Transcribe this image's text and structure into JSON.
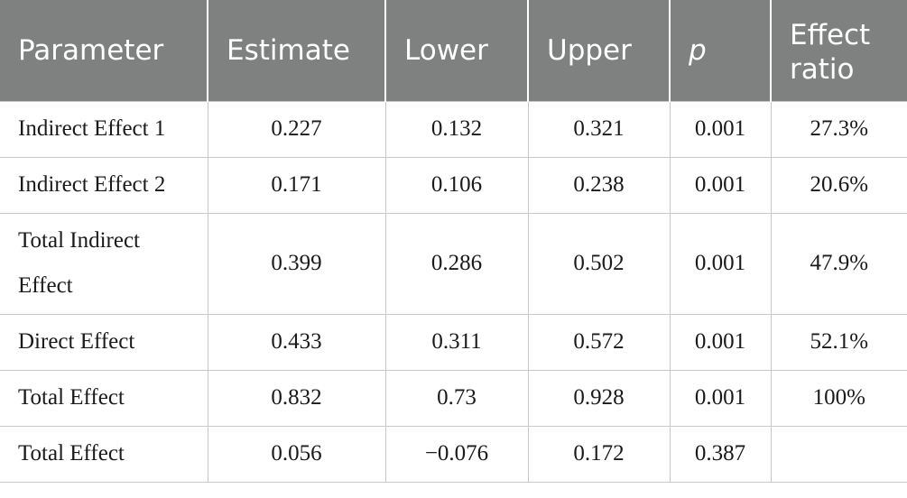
{
  "table": {
    "headers": [
      "Parameter",
      "Estimate",
      "Lower",
      "Upper",
      "p",
      "Effect ratio"
    ],
    "rows": [
      [
        "Indirect Effect 1",
        "0.227",
        "0.132",
        "0.321",
        "0.001",
        "27.3%"
      ],
      [
        "Indirect Effect 2",
        "0.171",
        "0.106",
        "0.238",
        "0.001",
        "20.6%"
      ],
      [
        "Total Indirect Effect",
        "0.399",
        "0.286",
        "0.502",
        "0.001",
        "47.9%"
      ],
      [
        "Direct Effect",
        "0.433",
        "0.311",
        "0.572",
        "0.001",
        "52.1%"
      ],
      [
        "Total Effect",
        "0.832",
        "0.73",
        "0.928",
        "0.001",
        "100%"
      ],
      [
        "Total Effect",
        "0.056",
        "−0.076",
        "0.172",
        "0.387",
        ""
      ]
    ]
  }
}
